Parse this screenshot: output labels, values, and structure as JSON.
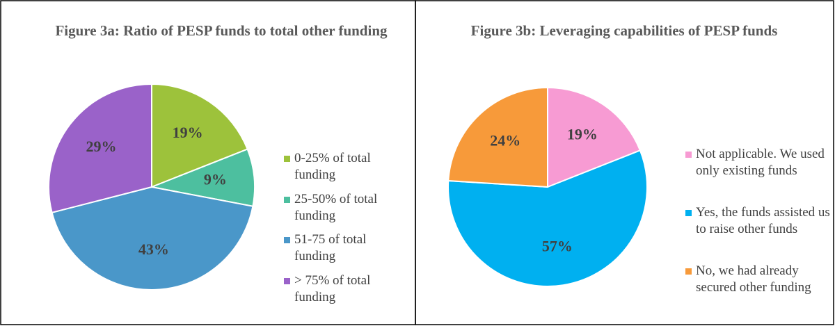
{
  "chart_data": [
    {
      "type": "pie",
      "title": "Figure 3a: Ratio of PESP funds to total other funding",
      "categories": [
        "0-25% of total funding",
        "25-50% of total funding",
        "51-75 of total funding",
        "> 75% of total funding"
      ],
      "values": [
        19,
        9,
        43,
        29
      ],
      "value_labels": [
        "19%",
        "9%",
        "43%",
        "29%"
      ],
      "colors": [
        "#9dc23b",
        "#4dbf9f",
        "#4a97c9",
        "#9a62c9"
      ],
      "legend": "right"
    },
    {
      "type": "pie",
      "title": "Figure 3b: Leveraging capabilities of PESP funds",
      "categories": [
        "Not applicable. We used only existing funds",
        "Yes, the funds assisted us to raise other funds",
        "No, we had already secured other funding"
      ],
      "values": [
        19,
        57,
        24
      ],
      "value_labels": [
        "19%",
        "57%",
        "24%"
      ],
      "colors": [
        "#f79bd3",
        "#00b0f0",
        "#f79a3a"
      ],
      "legend": "right"
    }
  ]
}
